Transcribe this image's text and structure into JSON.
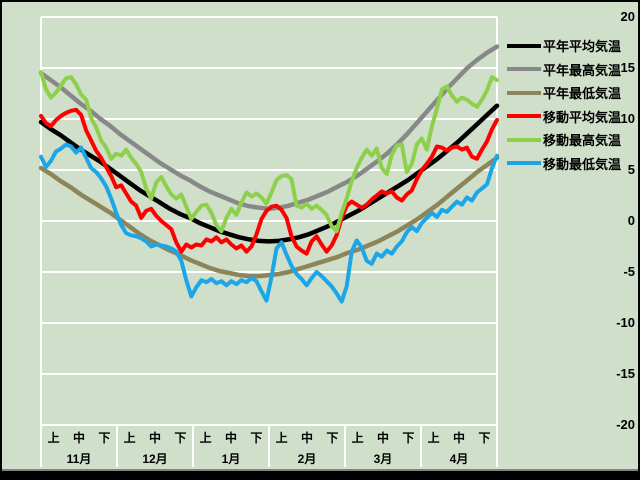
{
  "window": {
    "background": "#cfdfca",
    "frame_color": "#000000",
    "frame_inner_color": "#828282",
    "text_color": "#000000"
  },
  "chart_data": {
    "type": "line",
    "title": "",
    "xlabel": "",
    "ylabel": "",
    "ylim": [
      -20,
      20
    ],
    "y_tick_values": [
      20,
      15,
      10,
      5,
      0,
      -5,
      -10,
      -15,
      -20
    ],
    "y_tick_labels": [
      "20",
      "15",
      "10",
      "5",
      "0",
      "-5",
      "-10",
      "-15",
      "-20"
    ],
    "grid": true,
    "grid_color": "#ffffff",
    "legend_position": "right",
    "x_axis": {
      "period_labels": [
        "上",
        "中",
        "下"
      ],
      "month_labels": [
        "11月",
        "12月",
        "1月",
        "2月",
        "3月",
        "4月"
      ]
    },
    "series": [
      {
        "key": "normal-avg",
        "name": "平年平均気温",
        "color": "#000000",
        "width": 4.5,
        "values": [
          9.7,
          9.0,
          8.4,
          7.7,
          7.0,
          6.4,
          5.8,
          5.1,
          4.4,
          3.7,
          3.0,
          2.4,
          1.8,
          1.2,
          0.7,
          0.3,
          -0.2,
          -0.6,
          -1.0,
          -1.3,
          -1.6,
          -1.8,
          -1.95,
          -2.0,
          -1.95,
          -1.8,
          -1.6,
          -1.3,
          -0.9,
          -0.5,
          0.0,
          0.5,
          1.0,
          1.6,
          2.2,
          2.8,
          3.4,
          4.0,
          4.7,
          5.4,
          6.1,
          6.9,
          7.7,
          8.6,
          9.5,
          10.4,
          11.3
        ]
      },
      {
        "key": "normal-max",
        "name": "平年最高気温",
        "color": "#888888",
        "width": 4.5,
        "values": [
          14.5,
          13.8,
          13.1,
          12.3,
          11.5,
          10.8,
          10.0,
          9.3,
          8.5,
          7.8,
          7.1,
          6.4,
          5.7,
          5.1,
          4.5,
          4.0,
          3.4,
          2.9,
          2.5,
          2.1,
          1.7,
          1.45,
          1.3,
          1.2,
          1.3,
          1.5,
          1.8,
          2.1,
          2.5,
          2.9,
          3.4,
          3.9,
          4.5,
          5.2,
          5.9,
          6.7,
          7.6,
          8.6,
          9.7,
          10.8,
          11.9,
          13.0,
          14.0,
          15.0,
          15.8,
          16.5,
          17.1
        ]
      },
      {
        "key": "normal-min",
        "name": "平年最低気温",
        "color": "#8e845a",
        "width": 4.5,
        "values": [
          5.2,
          4.6,
          3.9,
          3.3,
          2.6,
          2.0,
          1.4,
          0.8,
          0.1,
          -0.6,
          -1.3,
          -1.9,
          -2.4,
          -2.9,
          -3.3,
          -3.8,
          -4.2,
          -4.6,
          -4.9,
          -5.1,
          -5.3,
          -5.4,
          -5.4,
          -5.3,
          -5.2,
          -5.0,
          -4.7,
          -4.4,
          -4.1,
          -3.8,
          -3.5,
          -3.1,
          -2.8,
          -2.4,
          -2.0,
          -1.5,
          -1.0,
          -0.4,
          0.2,
          0.9,
          1.6,
          2.4,
          3.2,
          4.0,
          4.8,
          5.5,
          6.2
        ]
      },
      {
        "key": "moving-avg",
        "name": "移動平均気温",
        "color": "#fe0000",
        "width": 4,
        "values": [
          10.3,
          9.6,
          9.3,
          9.9,
          10.3,
          10.6,
          10.8,
          10.9,
          10.4,
          8.9,
          7.9,
          6.9,
          6.2,
          5.3,
          4.4,
          3.3,
          3.5,
          2.7,
          1.9,
          1.5,
          0.3,
          1.0,
          1.2,
          0.5,
          0.0,
          -0.4,
          -0.8,
          -2.1,
          -3.0,
          -2.3,
          -2.6,
          -2.3,
          -2.4,
          -1.8,
          -2.0,
          -1.6,
          -2.1,
          -1.8,
          -2.3,
          -2.7,
          -2.4,
          -3.0,
          -2.5,
          -1.3,
          0.2,
          1.0,
          1.4,
          1.5,
          1.1,
          0.3,
          -1.5,
          -2.5,
          -2.9,
          -3.2,
          -2.0,
          -1.5,
          -2.3,
          -3.0,
          -2.4,
          -1.4,
          0.3,
          1.5,
          1.9,
          1.6,
          1.3,
          1.6,
          2.1,
          2.5,
          2.9,
          2.7,
          2.9,
          2.3,
          2.0,
          2.6,
          3.0,
          4.1,
          5.0,
          5.6,
          6.3,
          7.3,
          7.2,
          6.9,
          7.2,
          7.3,
          7.0,
          7.2,
          6.3,
          6.1,
          7.0,
          7.8,
          9.0,
          9.9
        ]
      },
      {
        "key": "moving-max",
        "name": "移動最高気温",
        "color": "#8ed04b",
        "width": 4,
        "values": [
          14.6,
          12.9,
          12.1,
          12.6,
          13.3,
          14.0,
          14.1,
          13.4,
          12.4,
          11.9,
          10.1,
          9.2,
          7.9,
          7.2,
          6.1,
          6.6,
          6.4,
          7.0,
          6.2,
          5.6,
          4.8,
          3.2,
          2.2,
          3.8,
          4.3,
          3.4,
          2.6,
          2.2,
          2.6,
          1.4,
          0.2,
          0.9,
          1.5,
          1.6,
          0.8,
          -0.4,
          -1.0,
          0.3,
          1.2,
          0.6,
          1.8,
          2.8,
          2.4,
          2.7,
          2.3,
          1.7,
          2.8,
          4.0,
          4.4,
          4.5,
          4.1,
          1.5,
          1.3,
          1.7,
          1.2,
          1.5,
          1.1,
          0.6,
          -0.5,
          -1.0,
          0.8,
          2.2,
          3.9,
          5.2,
          6.2,
          7.0,
          6.4,
          7.1,
          5.2,
          4.6,
          6.5,
          7.4,
          7.5,
          4.8,
          5.6,
          7.5,
          8.1,
          7.0,
          9.3,
          11.0,
          12.9,
          13.2,
          12.3,
          11.7,
          12.1,
          11.9,
          11.5,
          11.2,
          11.9,
          12.8,
          14.1,
          13.8
        ]
      },
      {
        "key": "moving-min",
        "name": "移動最低気温",
        "color": "#1ca6e8",
        "width": 4,
        "values": [
          6.3,
          5.3,
          5.9,
          6.8,
          7.1,
          7.5,
          7.3,
          6.7,
          7.2,
          6.2,
          5.2,
          4.8,
          4.2,
          3.4,
          2.2,
          0.8,
          -0.4,
          -1.2,
          -1.4,
          -1.5,
          -1.7,
          -2.0,
          -2.5,
          -2.3,
          -2.4,
          -2.5,
          -2.7,
          -3.0,
          -3.9,
          -5.8,
          -7.4,
          -6.5,
          -5.8,
          -6.0,
          -5.7,
          -6.1,
          -5.9,
          -6.3,
          -5.9,
          -6.2,
          -5.8,
          -6.0,
          -5.6,
          -5.9,
          -6.9,
          -7.8,
          -5.5,
          -2.7,
          -2.1,
          -3.3,
          -4.4,
          -5.2,
          -5.7,
          -6.3,
          -5.6,
          -5.0,
          -5.4,
          -5.9,
          -6.4,
          -7.1,
          -7.9,
          -6.4,
          -3.0,
          -1.9,
          -2.6,
          -3.9,
          -4.2,
          -3.2,
          -3.5,
          -2.9,
          -3.2,
          -2.5,
          -2.0,
          -1.1,
          -0.6,
          -1.0,
          -0.2,
          0.3,
          0.8,
          0.4,
          1.1,
          0.9,
          1.4,
          1.9,
          1.6,
          2.3,
          2.0,
          2.8,
          3.2,
          3.6,
          5.2,
          6.4
        ]
      }
    ]
  }
}
